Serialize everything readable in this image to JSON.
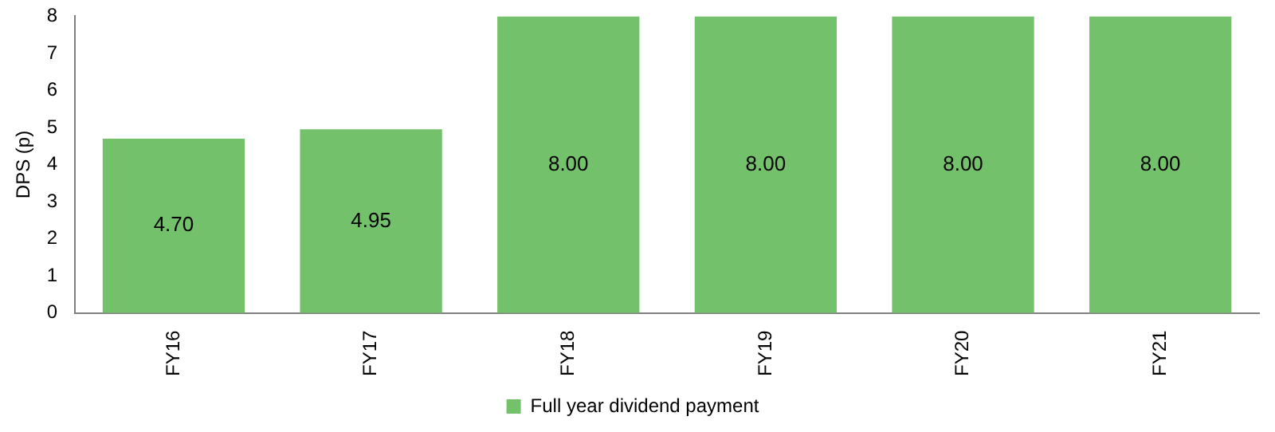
{
  "chart_data": {
    "type": "bar",
    "ylabel": "DPS (p)",
    "categories": [
      "FY16",
      "FY17",
      "FY18",
      "FY19",
      "FY20",
      "FY21"
    ],
    "series": [
      {
        "name": "Full year dividend payment",
        "color": "#74c16b",
        "values": [
          4.7,
          4.95,
          8.0,
          8.0,
          8.0,
          8.0
        ]
      }
    ],
    "value_labels": [
      "4.70",
      "4.95",
      "8.00",
      "8.00",
      "8.00",
      "8.00"
    ],
    "ylim": [
      0,
      8
    ],
    "yticks": [
      0,
      1,
      2,
      3,
      4,
      5,
      6,
      7,
      8
    ],
    "grid": false,
    "legend": "bottom"
  }
}
